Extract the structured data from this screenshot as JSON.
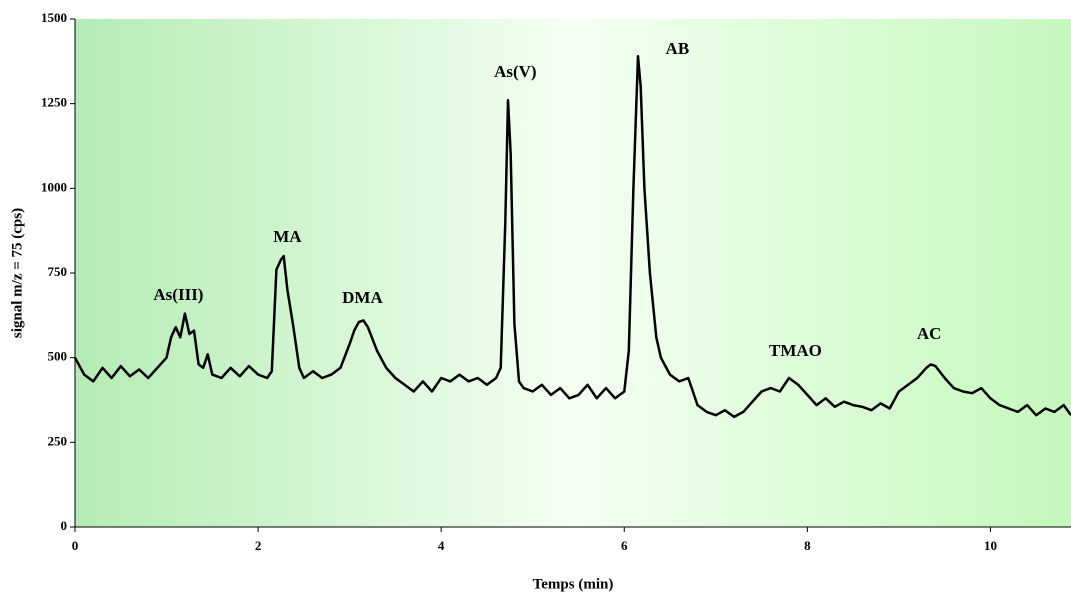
{
  "chart_data": {
    "type": "line",
    "xlabel": "Temps (min)",
    "ylabel": "signal m/z = 75 (cps)",
    "xlim": [
      0,
      10.88
    ],
    "ylim": [
      0,
      1500
    ],
    "xticks": [
      0,
      2,
      4,
      6,
      8,
      10
    ],
    "yticks": [
      0,
      250,
      500,
      750,
      1000,
      1250,
      1500
    ],
    "color": "#000000",
    "x": [
      0.0,
      0.1,
      0.2,
      0.3,
      0.4,
      0.5,
      0.6,
      0.7,
      0.8,
      0.9,
      1.0,
      1.05,
      1.1,
      1.15,
      1.2,
      1.25,
      1.3,
      1.35,
      1.4,
      1.45,
      1.5,
      1.6,
      1.7,
      1.8,
      1.9,
      2.0,
      2.1,
      2.15,
      2.2,
      2.25,
      2.28,
      2.32,
      2.38,
      2.45,
      2.5,
      2.6,
      2.7,
      2.8,
      2.9,
      3.0,
      3.05,
      3.1,
      3.15,
      3.2,
      3.3,
      3.4,
      3.5,
      3.6,
      3.7,
      3.8,
      3.9,
      4.0,
      4.1,
      4.2,
      4.3,
      4.4,
      4.5,
      4.6,
      4.65,
      4.7,
      4.73,
      4.76,
      4.8,
      4.85,
      4.9,
      5.0,
      5.1,
      5.2,
      5.3,
      5.4,
      5.5,
      5.6,
      5.7,
      5.8,
      5.9,
      6.0,
      6.05,
      6.1,
      6.15,
      6.18,
      6.22,
      6.28,
      6.35,
      6.4,
      6.5,
      6.6,
      6.7,
      6.8,
      6.9,
      7.0,
      7.1,
      7.2,
      7.3,
      7.4,
      7.5,
      7.6,
      7.7,
      7.8,
      7.9,
      8.0,
      8.1,
      8.2,
      8.3,
      8.4,
      8.5,
      8.6,
      8.7,
      8.8,
      8.9,
      9.0,
      9.1,
      9.2,
      9.3,
      9.35,
      9.4,
      9.5,
      9.6,
      9.7,
      9.8,
      9.9,
      10.0,
      10.1,
      10.2,
      10.3,
      10.4,
      10.5,
      10.6,
      10.7,
      10.8,
      10.88
    ],
    "values": [
      500,
      450,
      430,
      470,
      440,
      475,
      445,
      465,
      440,
      470,
      500,
      560,
      590,
      560,
      630,
      570,
      580,
      480,
      470,
      510,
      450,
      440,
      470,
      445,
      475,
      450,
      440,
      460,
      760,
      790,
      800,
      700,
      600,
      470,
      440,
      460,
      440,
      450,
      470,
      540,
      580,
      605,
      610,
      590,
      520,
      470,
      440,
      420,
      400,
      430,
      400,
      440,
      430,
      450,
      430,
      440,
      420,
      440,
      470,
      900,
      1260,
      1100,
      600,
      430,
      410,
      400,
      420,
      390,
      410,
      380,
      390,
      420,
      380,
      410,
      380,
      400,
      520,
      1000,
      1390,
      1300,
      1000,
      750,
      560,
      500,
      450,
      430,
      440,
      360,
      340,
      330,
      345,
      325,
      340,
      370,
      400,
      410,
      400,
      440,
      420,
      390,
      360,
      380,
      355,
      370,
      360,
      355,
      345,
      365,
      350,
      400,
      420,
      440,
      470,
      480,
      475,
      440,
      410,
      400,
      395,
      410,
      380,
      360,
      350,
      340,
      360,
      330,
      350,
      340,
      360,
      330
    ],
    "annotations": [
      {
        "text": "As(III)",
        "x": 1.13,
        "y": 682
      },
      {
        "text": "MA",
        "x": 2.32,
        "y": 853
      },
      {
        "text": "DMA",
        "x": 3.14,
        "y": 673
      },
      {
        "text": "As(V)",
        "x": 4.81,
        "y": 1340
      },
      {
        "text": "AB",
        "x": 6.58,
        "y": 1408
      },
      {
        "text": "TMAO",
        "x": 7.87,
        "y": 517
      },
      {
        "text": "AC",
        "x": 9.33,
        "y": 567
      }
    ]
  }
}
